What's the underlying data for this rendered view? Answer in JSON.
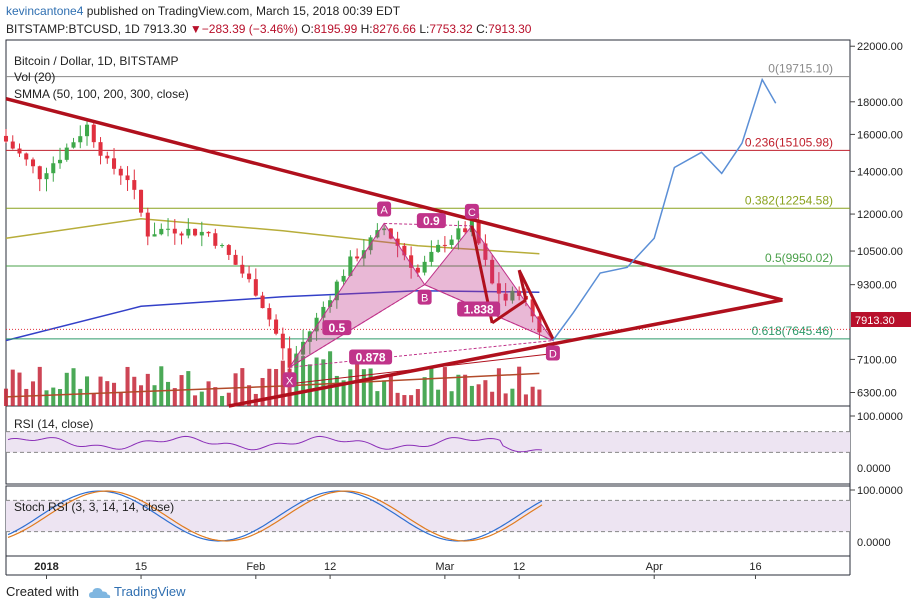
{
  "header": {
    "user": "kevincantone4",
    "published": "published on TradingView.com, March 15, 2018 00:39 EDT",
    "symbol": "BITSTAMP:BTCUSD, 1D",
    "last": "7913.30",
    "change_arrow": "▼",
    "change": "−283.39 (−3.46%)",
    "o_label": "O:",
    "o": "8195.99",
    "h_label": "H:",
    "h": "8276.66",
    "l_label": "L:",
    "l": "7753.32",
    "c_label": "C:",
    "c": "7913.30"
  },
  "legend": {
    "title": "Bitcoin / Dollar, 1D, BITSTAMP",
    "vol": "Vol (20)",
    "smma": "SMMA (50, 100, 200, 300, close)",
    "rsi": "RSI (14, close)",
    "stoch": "Stoch RSI (3, 3, 14, 14, close)"
  },
  "footer": {
    "created_with": "Created with",
    "brand": "TradingView",
    "logo_icon": "tradingview-cloud-icon"
  },
  "colors": {
    "up": "#3ea84a",
    "down": "#e0303f",
    "trend": "#b0101d",
    "pattern": "#c0338a",
    "projection": "#5b8fd6",
    "smma50": "#b7ad3a",
    "smma100": "#3340c8",
    "fib0": "#8a8a8a",
    "fib236": "#c0202d",
    "fib382": "#8aa21e",
    "fib5": "#4aa04a",
    "fib618": "#2d9a6a"
  },
  "chart_data": [
    {
      "type": "candlestick",
      "title": "Bitcoin / Dollar, 1D, BITSTAMP",
      "y_scale": "log",
      "ylim": [
        6000,
        22500
      ],
      "y_ticks": [
        "22000.00",
        "18000.00",
        "16000.00",
        "14000.00",
        "12000.00",
        "10500.00",
        "9300.00",
        "7100.00",
        "6300.00"
      ],
      "x_ticks": [
        "2018",
        "15",
        "Feb",
        "12",
        "Mar",
        "12",
        "Apr",
        "16"
      ],
      "x_range": [
        "2017-12-26",
        "2018-04-30"
      ],
      "last_price": "7913.30",
      "close_key": [
        {
          "date": "2017-12-26",
          "close": 15600
        },
        {
          "date": "2017-12-31",
          "close": 13800
        },
        {
          "date": "2018-01-03",
          "close": 14800
        },
        {
          "date": "2018-01-07",
          "close": 16500
        },
        {
          "date": "2018-01-10",
          "close": 14400
        },
        {
          "date": "2018-01-13",
          "close": 13700
        },
        {
          "date": "2018-01-16",
          "close": 11200
        },
        {
          "date": "2018-01-19",
          "close": 11400
        },
        {
          "date": "2018-01-25",
          "close": 11200
        },
        {
          "date": "2018-02-01",
          "close": 9100
        },
        {
          "date": "2018-02-06",
          "close": 6900
        },
        {
          "date": "2018-02-10",
          "close": 8200
        },
        {
          "date": "2018-02-15",
          "close": 10100
        },
        {
          "date": "2018-02-20",
          "close": 11400
        },
        {
          "date": "2018-02-25",
          "close": 9700
        },
        {
          "date": "2018-03-01",
          "close": 10900
        },
        {
          "date": "2018-03-05",
          "close": 11500
        },
        {
          "date": "2018-03-08",
          "close": 9300
        },
        {
          "date": "2018-03-10",
          "close": 8800
        },
        {
          "date": "2018-03-12",
          "close": 9100
        },
        {
          "date": "2018-03-15",
          "close": 7913
        }
      ],
      "smma": [
        {
          "name": "SMMA 50",
          "values": [
            {
              "date": "2017-12-26",
              "v": 11000
            },
            {
              "date": "2018-01-15",
              "v": 11800
            },
            {
              "date": "2018-02-05",
              "v": 11300
            },
            {
              "date": "2018-02-25",
              "v": 10700
            },
            {
              "date": "2018-03-15",
              "v": 10400
            }
          ]
        },
        {
          "name": "SMMA 100",
          "values": [
            {
              "date": "2017-12-26",
              "v": 7600
            },
            {
              "date": "2018-01-15",
              "v": 8600
            },
            {
              "date": "2018-02-05",
              "v": 8900
            },
            {
              "date": "2018-02-25",
              "v": 9100
            },
            {
              "date": "2018-03-15",
              "v": 9050
            }
          ]
        },
        {
          "name": "SMMA 200",
          "values": [
            {
              "date": "2017-12-26",
              "v": 6200
            },
            {
              "date": "2018-02-05",
              "v": 6450
            },
            {
              "date": "2018-03-15",
              "v": 6750
            }
          ]
        }
      ],
      "fibonacci": [
        {
          "label": "0(19715.10)",
          "price": 19715.1
        },
        {
          "label": "0.236(15105.98)",
          "price": 15105.98
        },
        {
          "label": "0.382(12254.58)",
          "price": 12254.58
        },
        {
          "label": "0.5(9950.02)",
          "price": 9950.02
        },
        {
          "label": "0.618(7645.46)",
          "price": 7645.46
        }
      ],
      "harmonic_points": [
        {
          "label": "X",
          "date": "2018-02-06",
          "price": 6900
        },
        {
          "label": "A",
          "date": "2018-02-20",
          "price": 11600
        },
        {
          "label": "B",
          "date": "2018-02-26",
          "price": 9300
        },
        {
          "label": "C",
          "date": "2018-03-05",
          "price": 11500
        },
        {
          "label": "D",
          "date": "2018-03-17",
          "price": 7600
        }
      ],
      "ratios": [
        {
          "label": "0.9",
          "date": "2018-02-27",
          "price": 11700
        },
        {
          "label": "0.5",
          "date": "2018-02-13",
          "price": 7950
        },
        {
          "label": "1.838",
          "date": "2018-03-06",
          "price": 8500
        },
        {
          "label": "0.878",
          "date": "2018-02-18",
          "price": 7150
        }
      ],
      "projection": [
        {
          "date": "2018-03-17",
          "price": 7600
        },
        {
          "date": "2018-03-20",
          "price": 8400
        },
        {
          "date": "2018-03-24",
          "price": 9700
        },
        {
          "date": "2018-03-28",
          "price": 9900
        },
        {
          "date": "2018-04-01",
          "price": 11000
        },
        {
          "date": "2018-04-04",
          "price": 14200
        },
        {
          "date": "2018-04-08",
          "price": 15000
        },
        {
          "date": "2018-04-11",
          "price": 13900
        },
        {
          "date": "2018-04-14",
          "price": 15500
        },
        {
          "date": "2018-04-17",
          "price": 19500
        },
        {
          "date": "2018-04-19",
          "price": 17900
        }
      ]
    },
    {
      "type": "line",
      "title": "RSI (14, close)",
      "ylim": [
        0,
        100
      ],
      "y_ticks": [
        "100.0000",
        "0.0000"
      ]
    },
    {
      "type": "line",
      "title": "Stoch RSI (3, 3, 14, 14, close)",
      "ylim": [
        0,
        100
      ],
      "y_ticks": [
        "100.0000",
        "0.0000"
      ]
    }
  ]
}
